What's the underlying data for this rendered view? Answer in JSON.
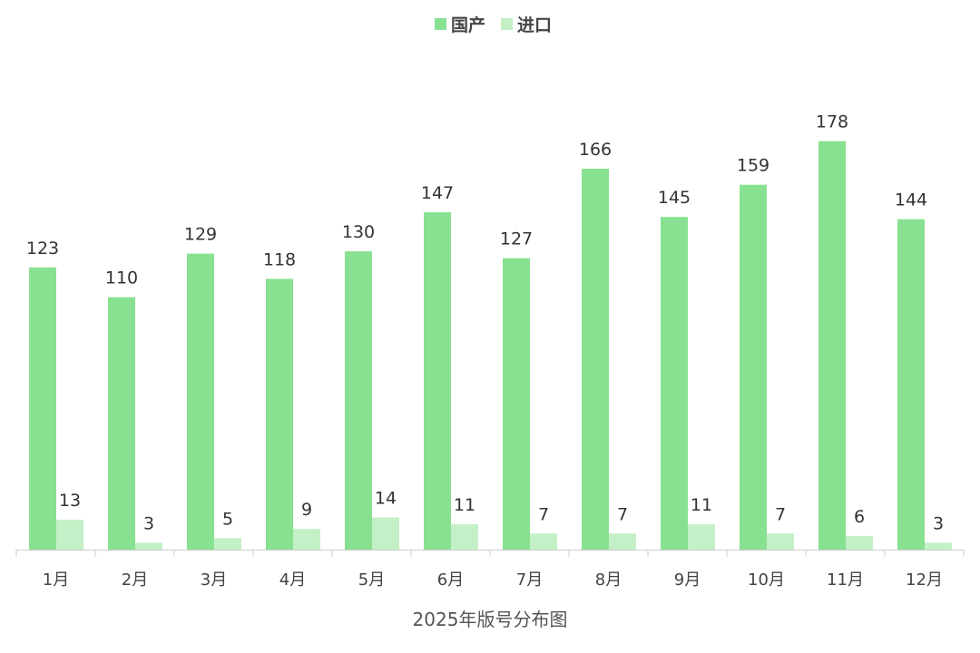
{
  "chart_data": {
    "type": "bar",
    "categories": [
      "1月",
      "2月",
      "3月",
      "4月",
      "5月",
      "6月",
      "7月",
      "8月",
      "9月",
      "10月",
      "11月",
      "12月"
    ],
    "series": [
      {
        "name": "国产",
        "color": "#88e190",
        "values": [
          123,
          110,
          129,
          118,
          130,
          147,
          127,
          166,
          145,
          159,
          178,
          144
        ]
      },
      {
        "name": "进口",
        "color": "#c3f0c6",
        "values": [
          13,
          3,
          5,
          9,
          14,
          11,
          7,
          7,
          11,
          7,
          6,
          3
        ]
      }
    ],
    "xlabel": "2025年版号分布图",
    "ylim": [
      0,
      180
    ],
    "legend": "top-center",
    "grid": false,
    "axis_color": "#cccccc"
  }
}
